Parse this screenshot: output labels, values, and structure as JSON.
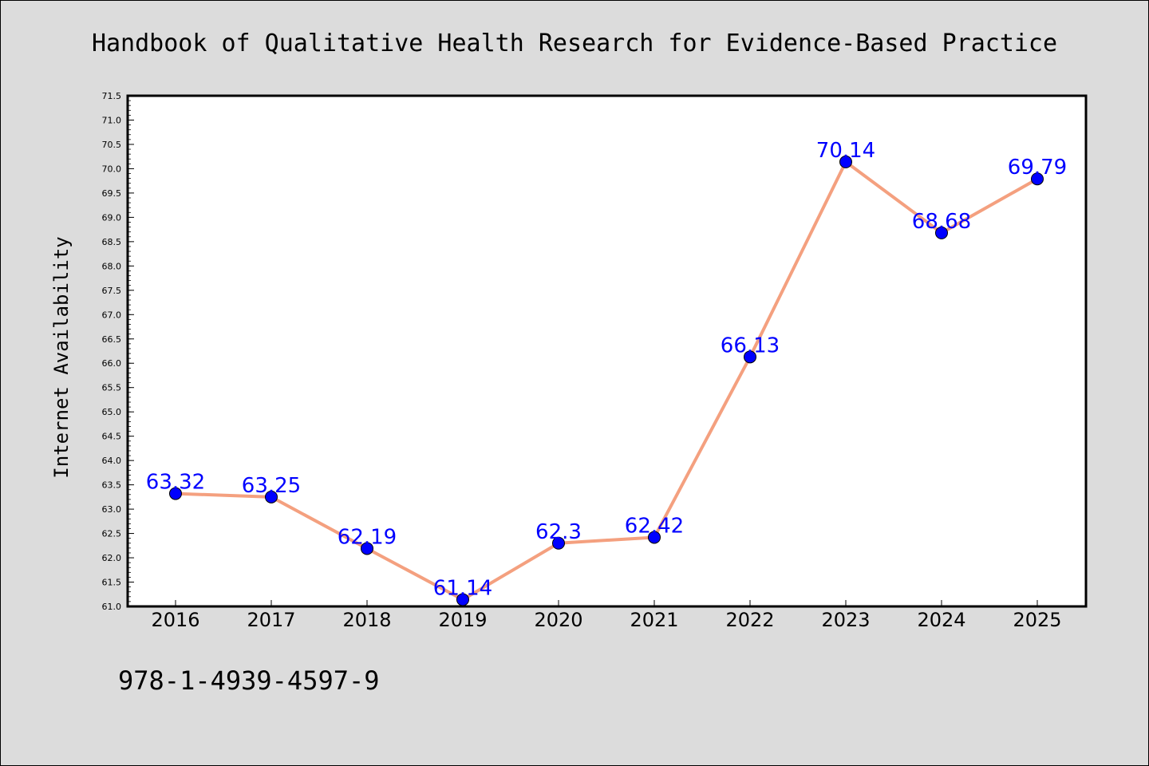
{
  "chart_data": {
    "type": "line",
    "title": "Handbook of Qualitative Health Research for Evidence-Based Practice",
    "xlabel": "",
    "ylabel": "Internet Availability",
    "categories": [
      "2016",
      "2017",
      "2018",
      "2019",
      "2020",
      "2021",
      "2022",
      "2023",
      "2024",
      "2025"
    ],
    "series": [
      {
        "values": [
          63.32,
          63.25,
          62.19,
          61.14,
          62.3,
          62.42,
          66.13,
          70.14,
          68.68,
          69.79
        ]
      }
    ],
    "data_labels": [
      "63.32",
      "63.25",
      "62.19",
      "61.14",
      "62.3",
      "62.42",
      "66.13",
      "70.14",
      "68.68",
      "69.79"
    ],
    "ylim": [
      61.0,
      71.5
    ],
    "yticks": [
      "61.0",
      "61.5",
      "62.0",
      "62.5",
      "63.0",
      "63.5",
      "64.0",
      "64.5",
      "65.0",
      "65.5",
      "66.0",
      "66.5",
      "67.0",
      "67.5",
      "68.0",
      "68.5",
      "69.0",
      "69.5",
      "70.0",
      "70.5",
      "71.0",
      "71.5"
    ],
    "grid": false,
    "colors": {
      "line": "#f4a07f",
      "marker": "#0000ff",
      "label": "#0000ff",
      "background": "#dcdcdc",
      "plot_area": "#ffffff"
    }
  },
  "footer": {
    "isbn": "978-1-4939-4597-9"
  }
}
